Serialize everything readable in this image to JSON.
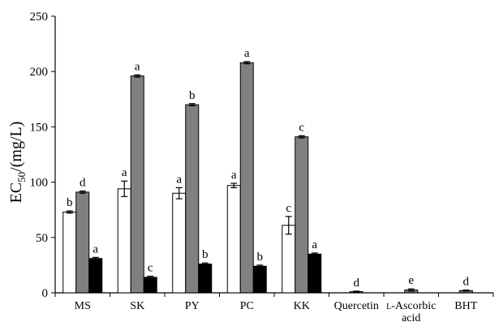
{
  "chart_data": {
    "type": "bar",
    "ylabel": "EC50/(mg/L)",
    "ylabel_parts": {
      "main": "EC",
      "sub": "50",
      "rest": "/(mg/L)"
    },
    "ylim": [
      0,
      250
    ],
    "yticks": [
      0,
      50,
      100,
      150,
      200,
      250
    ],
    "categories": [
      {
        "lines": [
          "MS"
        ]
      },
      {
        "lines": [
          "SK"
        ]
      },
      {
        "lines": [
          "PY"
        ]
      },
      {
        "lines": [
          "PC"
        ]
      },
      {
        "lines": [
          "KK"
        ]
      },
      {
        "lines": [
          "Quercetin"
        ]
      },
      {
        "lines": [
          "L-Ascorbic",
          "acid"
        ],
        "smallcaps_prefix": "L"
      },
      {
        "lines": [
          "BHT"
        ]
      }
    ],
    "series": [
      {
        "color": "#ffffff",
        "values": [
          73,
          94,
          90,
          97,
          61,
          null,
          null,
          null
        ],
        "errors": [
          1,
          7,
          5,
          2,
          8,
          null,
          null,
          null
        ],
        "labels": [
          "b",
          "a",
          "a",
          "a",
          "c",
          "",
          "",
          ""
        ]
      },
      {
        "color": "#808080",
        "values": [
          91,
          196,
          170,
          208,
          141,
          1,
          2.5,
          2
        ],
        "errors": [
          1,
          1,
          1,
          1,
          1,
          0.5,
          1,
          0.5
        ],
        "labels": [
          "d",
          "a",
          "b",
          "a",
          "c",
          "d",
          "e",
          "d"
        ]
      },
      {
        "color": "#000000",
        "values": [
          31,
          14,
          26,
          24,
          35,
          null,
          null,
          null
        ],
        "errors": [
          1,
          1,
          1,
          1,
          1,
          null,
          null,
          null
        ],
        "labels": [
          "a",
          "c",
          "b",
          "b",
          "a",
          "",
          "",
          ""
        ]
      }
    ]
  }
}
